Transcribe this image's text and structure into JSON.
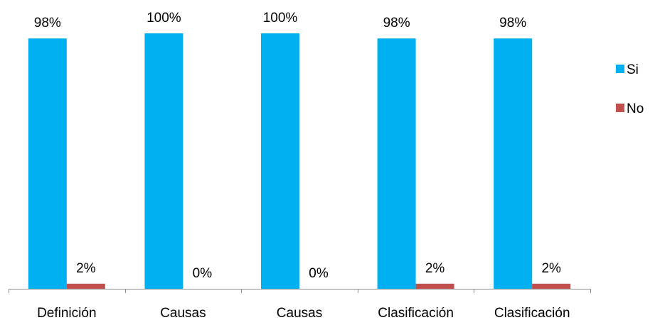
{
  "chart_data": {
    "type": "bar",
    "categories": [
      "Definición",
      "Causas",
      "Causas",
      "Clasificación",
      "Clasificación"
    ],
    "series": [
      {
        "name": "Si",
        "values": [
          98,
          100,
          100,
          98,
          98
        ],
        "labels": [
          "98%",
          "100%",
          "100%",
          "98%",
          "98%"
        ],
        "color": "#00b0f0"
      },
      {
        "name": "No",
        "values": [
          2,
          0,
          0,
          2,
          2
        ],
        "labels": [
          "2%",
          "0%",
          "0%",
          "2%",
          "2%"
        ],
        "color": "#c0504d"
      }
    ],
    "ylim": [
      0,
      100
    ],
    "unit": "%",
    "grid": false,
    "legend_position": "right",
    "title": "",
    "xlabel": "",
    "ylabel": ""
  }
}
